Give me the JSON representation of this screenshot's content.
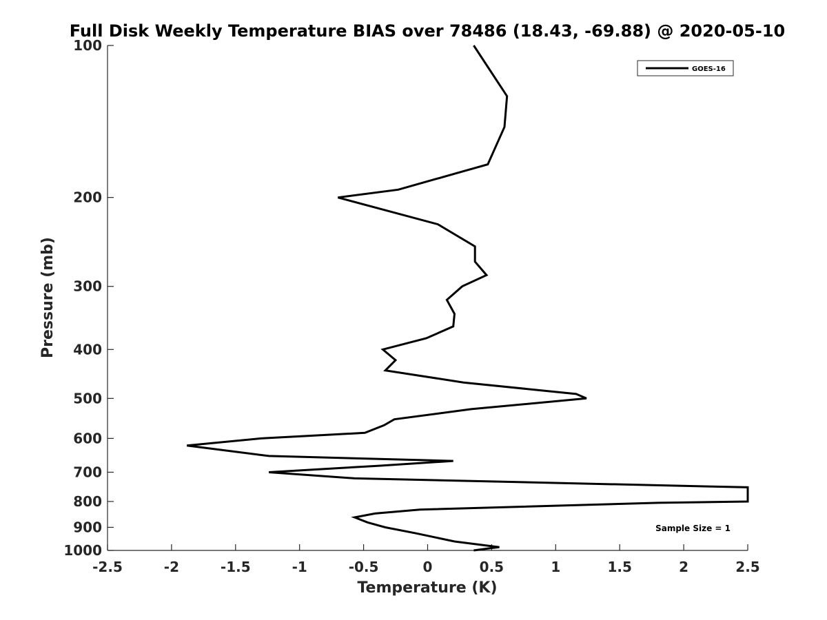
{
  "chart_data": {
    "type": "line",
    "title": "Full Disk Weekly Temperature BIAS over 78486 (18.43, -69.88) @ 2020-05-10",
    "xlabel": "Temperature (K)",
    "ylabel": "Pressure (mb)",
    "xlim": [
      -2.5,
      2.5
    ],
    "ylim": [
      1000,
      100
    ],
    "yscale": "log",
    "y_reversed": true,
    "grid": false,
    "legend_position": "top-right",
    "x_ticks": [
      "-2.5",
      "-2",
      "-1.5",
      "-1",
      "-0.5",
      "0",
      "0.5",
      "1",
      "1.5",
      "2",
      "2.5"
    ],
    "y_ticks": [
      "100",
      "200",
      "300",
      "400",
      "500",
      "600",
      "700",
      "800",
      "900",
      "1000"
    ],
    "series": [
      {
        "name": "GOES-16",
        "color": "#000000",
        "points": [
          {
            "x": 0.36,
            "y": 100
          },
          {
            "x": 0.62,
            "y": 126
          },
          {
            "x": 0.6,
            "y": 145
          },
          {
            "x": 0.47,
            "y": 172
          },
          {
            "x": -0.23,
            "y": 193
          },
          {
            "x": -0.7,
            "y": 200
          },
          {
            "x": 0.08,
            "y": 226
          },
          {
            "x": 0.37,
            "y": 250
          },
          {
            "x": 0.37,
            "y": 268
          },
          {
            "x": 0.46,
            "y": 285
          },
          {
            "x": 0.27,
            "y": 300
          },
          {
            "x": 0.15,
            "y": 319
          },
          {
            "x": 0.21,
            "y": 340
          },
          {
            "x": 0.2,
            "y": 360
          },
          {
            "x": -0.01,
            "y": 380
          },
          {
            "x": -0.35,
            "y": 400
          },
          {
            "x": -0.25,
            "y": 420
          },
          {
            "x": -0.33,
            "y": 440
          },
          {
            "x": 0.28,
            "y": 465
          },
          {
            "x": 1.16,
            "y": 490
          },
          {
            "x": 1.24,
            "y": 500
          },
          {
            "x": 0.34,
            "y": 525
          },
          {
            "x": -0.26,
            "y": 550
          },
          {
            "x": -0.34,
            "y": 565
          },
          {
            "x": -0.49,
            "y": 585
          },
          {
            "x": -1.3,
            "y": 600
          },
          {
            "x": -1.88,
            "y": 620
          },
          {
            "x": -1.24,
            "y": 650
          },
          {
            "x": 0.2,
            "y": 665
          },
          {
            "x": -0.39,
            "y": 680
          },
          {
            "x": -1.24,
            "y": 700
          },
          {
            "x": -0.57,
            "y": 720
          },
          {
            "x": 2.5,
            "y": 750
          },
          {
            "x": 2.5,
            "y": 800
          },
          {
            "x": 1.8,
            "y": 805
          },
          {
            "x": -0.06,
            "y": 830
          },
          {
            "x": -0.41,
            "y": 845
          },
          {
            "x": -0.57,
            "y": 860
          },
          {
            "x": -0.47,
            "y": 880
          },
          {
            "x": -0.33,
            "y": 900
          },
          {
            "x": -0.09,
            "y": 925
          },
          {
            "x": 0.21,
            "y": 960
          },
          {
            "x": 0.56,
            "y": 985
          },
          {
            "x": 0.49,
            "y": 990
          },
          {
            "x": 0.36,
            "y": 1000
          }
        ]
      }
    ],
    "annotations": [
      "Sample Size = 1"
    ]
  }
}
